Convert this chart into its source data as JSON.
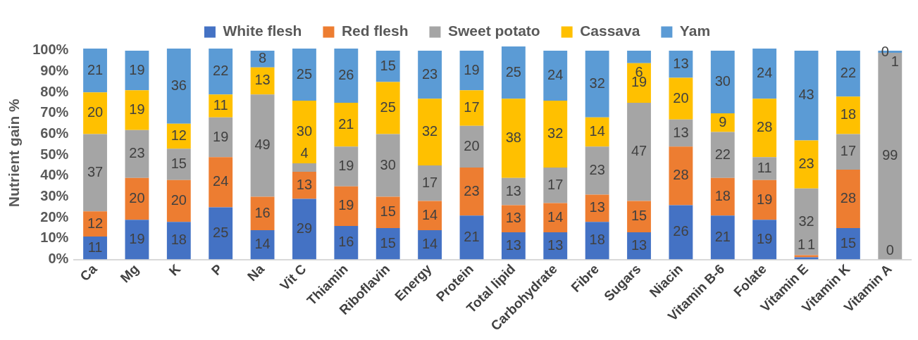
{
  "chart_data": {
    "type": "bar",
    "stacked": true,
    "ylabel": "Nutrient gain %",
    "categories": [
      "Ca",
      "Mg",
      "K",
      "P",
      "Na",
      "Vit C",
      "Thiamin",
      "Riboflavin",
      "Energy",
      "Protein",
      "Total lipid",
      "Carbohydrate",
      "Fibre",
      "Sugars",
      "Niacin",
      "Vitamin B-6",
      "Folate",
      "Vitamin E",
      "Vitamin K",
      "Vitamin A"
    ],
    "series": [
      {
        "name": "White flesh",
        "color": "#4472c4",
        "values": [
          11,
          19,
          18,
          25,
          14,
          29,
          16,
          15,
          14,
          21,
          13,
          13,
          18,
          13,
          26,
          21,
          19,
          1,
          15,
          0
        ]
      },
      {
        "name": "Red flesh",
        "color": "#ed7d31",
        "values": [
          12,
          20,
          20,
          24,
          16,
          13,
          19,
          15,
          14,
          23,
          13,
          14,
          13,
          15,
          28,
          18,
          19,
          1,
          28,
          0
        ]
      },
      {
        "name": "Sweet potato",
        "color": "#a5a5a5",
        "values": [
          37,
          23,
          15,
          19,
          49,
          4,
          19,
          30,
          17,
          20,
          13,
          17,
          23,
          47,
          13,
          22,
          11,
          32,
          17,
          99
        ]
      },
      {
        "name": "Cassava",
        "color": "#ffc000",
        "values": [
          20,
          19,
          12,
          11,
          13,
          30,
          21,
          25,
          32,
          17,
          38,
          32,
          14,
          19,
          20,
          9,
          28,
          23,
          18,
          0
        ]
      },
      {
        "name": "Yam",
        "color": "#5b9bd5",
        "values": [
          21,
          19,
          36,
          22,
          8,
          25,
          26,
          15,
          23,
          19,
          25,
          24,
          32,
          6,
          13,
          30,
          24,
          43,
          22,
          1
        ]
      }
    ],
    "ylim": [
      0,
      102
    ],
    "yticks": [
      {
        "value": 0,
        "label": "0%"
      },
      {
        "value": 10,
        "label": "10%"
      },
      {
        "value": 20,
        "label": "20%"
      },
      {
        "value": 30,
        "label": "30%"
      },
      {
        "value": 40,
        "label": "40%"
      },
      {
        "value": 50,
        "label": "50%"
      },
      {
        "value": 60,
        "label": "60%"
      },
      {
        "value": 70,
        "label": "70%"
      },
      {
        "value": 80,
        "label": "80%"
      },
      {
        "value": 90,
        "label": "90%"
      },
      {
        "value": 100,
        "label": "100%"
      }
    ],
    "value_labels": [
      [
        "11",
        "19",
        "18",
        "25",
        "14",
        "29",
        "16",
        "15",
        "14",
        "21",
        "13",
        "13",
        "18",
        "13",
        "26",
        "21",
        "19",
        "1",
        "15",
        "0"
      ],
      [
        "12",
        "20",
        "20",
        "24",
        "16",
        "13",
        "19",
        "15",
        "14",
        "23",
        "13",
        "14",
        "13",
        "15",
        "28",
        "18",
        "19",
        "1",
        "28",
        null
      ],
      [
        "37",
        "23",
        "15",
        "19",
        "49",
        "4",
        "19",
        "30",
        "17",
        "20",
        "13",
        "17",
        "23",
        "47",
        "13",
        "22",
        "11",
        "32",
        "17",
        "99"
      ],
      [
        "20",
        "19",
        "12",
        "11",
        "13",
        "30",
        "21",
        "25",
        "32",
        "17",
        "38",
        "32",
        "14",
        "19",
        "20",
        "9",
        "28",
        "23",
        "18",
        "0"
      ],
      [
        "21",
        "19",
        "36",
        "22",
        "8",
        "25",
        "26",
        "15",
        "23",
        "19",
        "25",
        "24",
        "32",
        "6",
        "13",
        "30",
        "24",
        "43",
        "22",
        "1"
      ]
    ],
    "grid": false,
    "legend": "top"
  }
}
